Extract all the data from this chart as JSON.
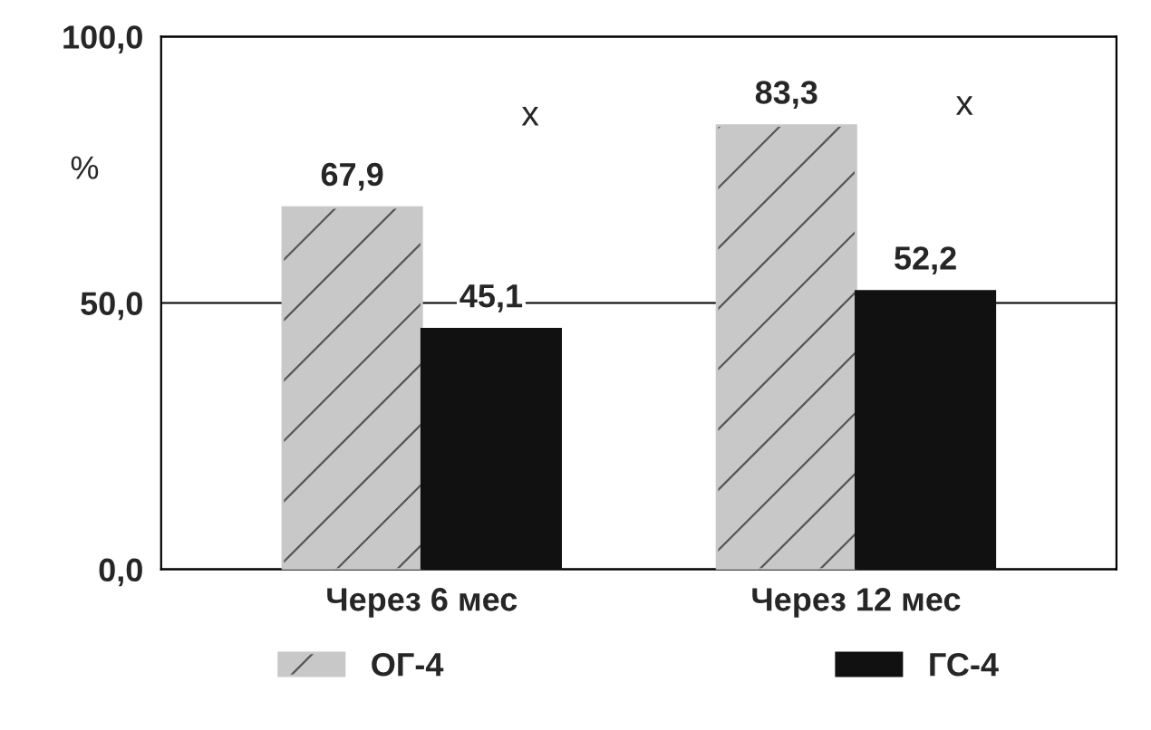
{
  "chart_data": {
    "type": "bar",
    "ylabel": "%",
    "categories": [
      "Через 6 мес",
      "Через 12 мес"
    ],
    "series": [
      {
        "name": "ОГ-4",
        "color": "#c8c8c8",
        "values": [
          67.9,
          83.3
        ],
        "value_labels": [
          "67,9",
          "83,3"
        ]
      },
      {
        "name": "ГС-4",
        "color": "#111111",
        "values": [
          45.1,
          52.2
        ],
        "value_labels": [
          "45,1",
          "52,2"
        ]
      }
    ],
    "ylim": [
      0,
      100
    ],
    "yticks": [
      {
        "value": 0,
        "label": "0,0"
      },
      {
        "value": 50,
        "label": "50,0"
      },
      {
        "value": 100,
        "label": "100,0"
      }
    ],
    "grid": "y",
    "legend": "bottom",
    "annotations": [
      "x",
      "x"
    ]
  }
}
